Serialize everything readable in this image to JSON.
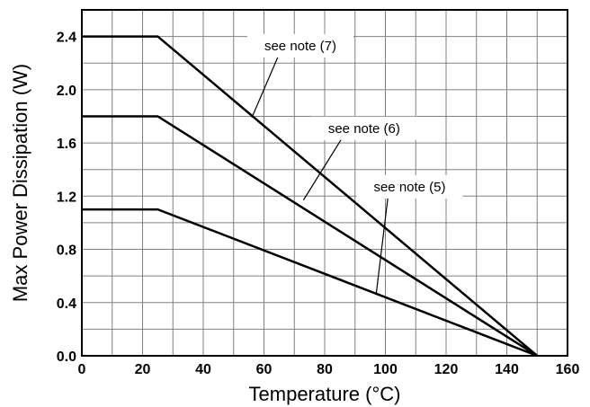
{
  "chart_data": {
    "type": "line",
    "title": "",
    "xlabel": "Temperature (°C)",
    "ylabel": "Max Power Dissipation (W)",
    "xlim": [
      0,
      160
    ],
    "ylim": [
      0,
      2.6
    ],
    "x_ticks": [
      0,
      20,
      40,
      60,
      80,
      100,
      120,
      140,
      160
    ],
    "y_ticks": [
      0.0,
      0.4,
      0.8,
      1.2,
      1.6,
      2.0,
      2.4
    ],
    "x_tick_labels": [
      "0",
      "20",
      "40",
      "60",
      "80",
      "100",
      "120",
      "140",
      "160"
    ],
    "y_tick_labels": [
      "0.0",
      "0.4",
      "0.8",
      "1.2",
      "1.6",
      "2.0",
      "2.4"
    ],
    "grid": true,
    "series": [
      {
        "x": [
          0,
          25,
          150
        ],
        "y": [
          2.4,
          2.4,
          0.0
        ]
      },
      {
        "x": [
          0,
          25,
          150
        ],
        "y": [
          1.8,
          1.8,
          0.0
        ]
      },
      {
        "x": [
          0,
          25,
          150
        ],
        "y": [
          1.1,
          1.1,
          0.0
        ]
      }
    ],
    "annotations": [
      {
        "text": "see note (7)",
        "point": [
          56,
          1.79
        ],
        "text_at": [
          72,
          2.33
        ]
      },
      {
        "text": "see note (6)",
        "point": [
          73,
          1.17
        ],
        "text_at": [
          93,
          1.71
        ]
      },
      {
        "text": "see note (5)",
        "point": [
          97,
          0.47
        ],
        "text_at": [
          108,
          1.27
        ]
      }
    ],
    "colors": {
      "line": "#000000",
      "grid": "#808080",
      "frame": "#000000"
    }
  }
}
